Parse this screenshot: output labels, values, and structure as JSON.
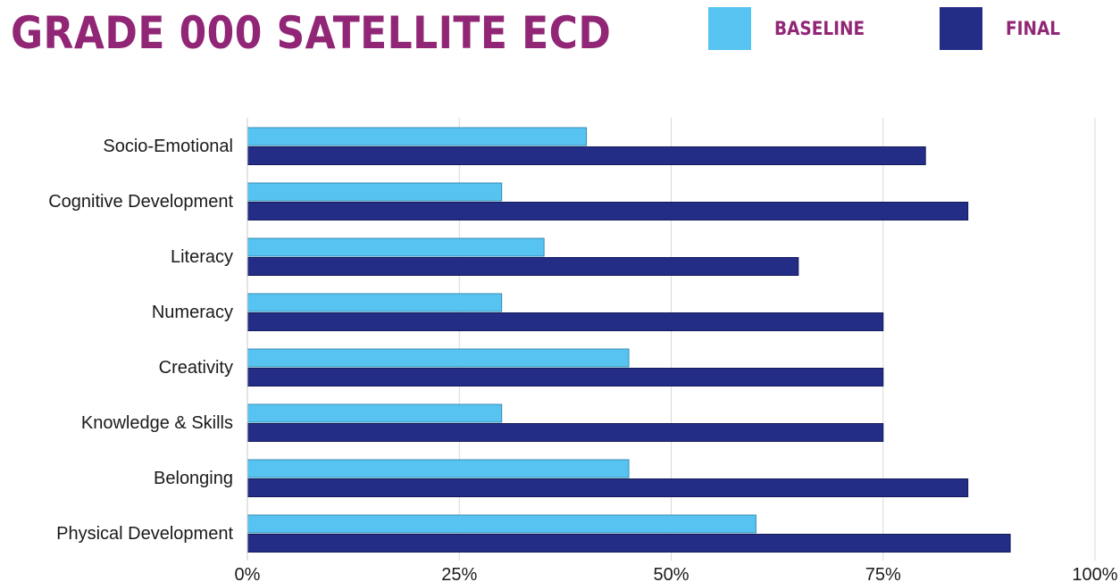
{
  "chart_data": {
    "type": "bar",
    "orientation": "horizontal",
    "title": "GRADE 000 SATELLITE ECD",
    "categories": [
      "Socio-Emotional",
      "Cognitive Development",
      "Literacy",
      "Numeracy",
      "Creativity",
      "Knowledge & Skills",
      "Belonging",
      "Physical Development"
    ],
    "series": [
      {
        "name": "BASELINE",
        "color": "#56c3f0",
        "values": [
          40,
          30,
          35,
          30,
          45,
          30,
          45,
          60
        ]
      },
      {
        "name": "FINAL",
        "color": "#232d86",
        "values": [
          80,
          85,
          65,
          75,
          75,
          75,
          85,
          90
        ]
      }
    ],
    "xlim": [
      0,
      100
    ],
    "x_ticks": [
      0,
      25,
      50,
      75,
      100
    ],
    "x_tick_labels": [
      "0%",
      "25%",
      "50%",
      "75%",
      "100%"
    ],
    "grid": "vertical",
    "legend_position": "top-right"
  }
}
